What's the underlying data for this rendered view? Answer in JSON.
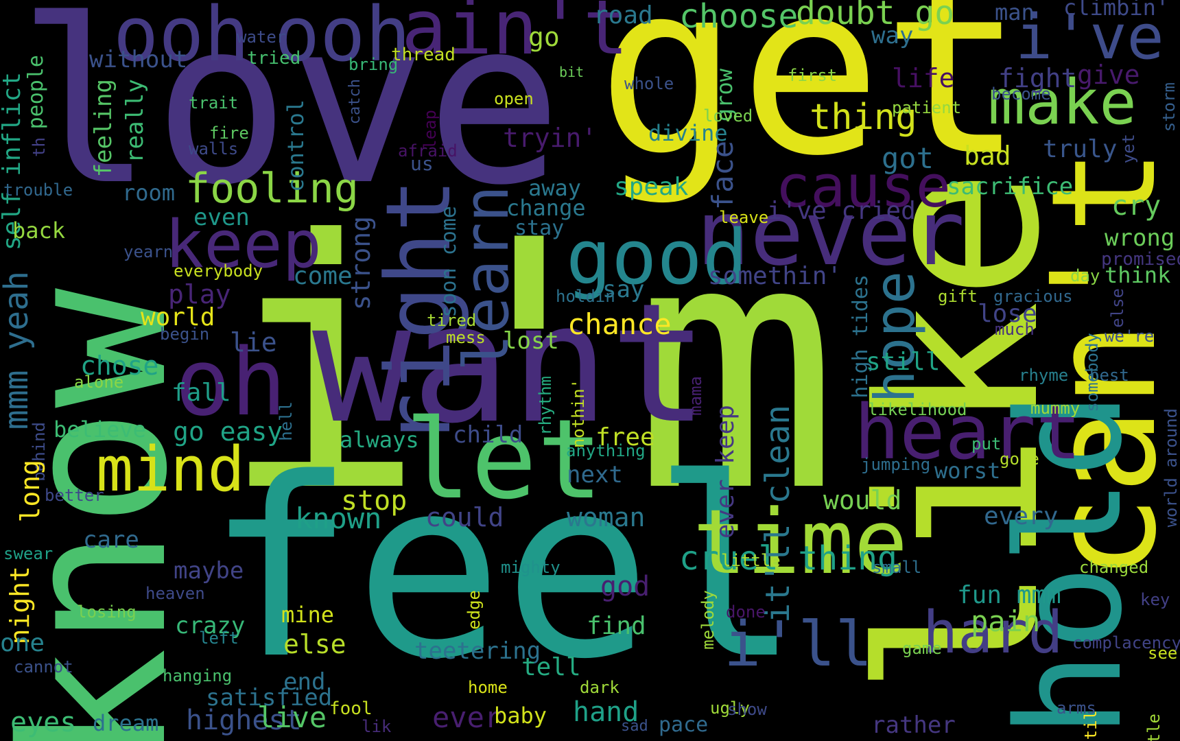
{
  "words": [
    {
      "text": "love",
      "color": "#46337e"
    },
    {
      "text": "get",
      "color": "#e2e418"
    },
    {
      "text": "i'm",
      "color": "#a0da39"
    },
    {
      "text": "feel",
      "color": "#1f9a8a"
    },
    {
      "text": "know",
      "color": "#4ac16d"
    },
    {
      "text": "want",
      "color": "#472c7a"
    },
    {
      "text": "like",
      "color": "#b5de2b"
    },
    {
      "text": "can't",
      "color": "#dde318"
    },
    {
      "text": "hold",
      "color": "#1f948c"
    },
    {
      "text": "ooh",
      "color": "#443a83"
    },
    {
      "text": "ooh",
      "color": "#433e85"
    },
    {
      "text": "ain't",
      "color": "#482576"
    },
    {
      "text": "i've",
      "color": "#3e4c8a"
    },
    {
      "text": "never",
      "color": "#472d7b"
    },
    {
      "text": "time",
      "color": "#a2da37"
    },
    {
      "text": "heart",
      "color": "#481f70"
    },
    {
      "text": "right",
      "color": "#3f4889"
    },
    {
      "text": "let",
      "color": "#4ec36b"
    },
    {
      "text": "oh",
      "color": "#482173"
    },
    {
      "text": "make",
      "color": "#7ad151"
    },
    {
      "text": "good",
      "color": "#24868e"
    },
    {
      "text": "keep",
      "color": "#482878"
    },
    {
      "text": "mind",
      "color": "#d8e219"
    },
    {
      "text": "cause",
      "color": "#440f5d"
    },
    {
      "text": "hard",
      "color": "#433e85"
    },
    {
      "text": "i'll",
      "color": "#3b528b"
    },
    {
      "text": "learn",
      "color": "#3b528b"
    },
    {
      "text": "fooling",
      "color": "#8bd646"
    },
    {
      "text": "hope",
      "color": "#2c728e"
    },
    {
      "text": "choose",
      "color": "#54c568"
    },
    {
      "text": "doubt go",
      "color": "#7ad151"
    },
    {
      "text": "thing",
      "color": "#d2e21b"
    },
    {
      "text": "cruel thing",
      "color": "#1fa188"
    },
    {
      "text": "it'll clean",
      "color": "#2a788e"
    },
    {
      "text": "mmm yeah",
      "color": "#2e6e8e"
    },
    {
      "text": "road",
      "color": "#2a788e"
    },
    {
      "text": "man",
      "color": "#3b528b"
    },
    {
      "text": "climbin'",
      "color": "#3e4a89"
    },
    {
      "text": "go",
      "color": "#9fda3a"
    },
    {
      "text": "way",
      "color": "#2e6f8e"
    },
    {
      "text": "water",
      "color": "#3e4c8a"
    },
    {
      "text": "tried",
      "color": "#46c06f"
    },
    {
      "text": "thread",
      "color": "#c2df23"
    },
    {
      "text": "bring",
      "color": "#38b977"
    },
    {
      "text": "without",
      "color": "#3b528b"
    },
    {
      "text": "self inflict",
      "color": "#22a785"
    },
    {
      "text": "people",
      "color": "#4ac16d"
    },
    {
      "text": "feeling",
      "color": "#56c667"
    },
    {
      "text": "really",
      "color": "#3dbc74"
    },
    {
      "text": "trait",
      "color": "#4ac16d"
    },
    {
      "text": "fire",
      "color": "#5ec962"
    },
    {
      "text": "walls",
      "color": "#3e4a89"
    },
    {
      "text": "th",
      "color": "#424086"
    },
    {
      "text": "catch",
      "color": "#3b528b"
    },
    {
      "text": "open",
      "color": "#cae11f"
    },
    {
      "text": "bit",
      "color": "#6ccd5a"
    },
    {
      "text": "whole",
      "color": "#3b528b"
    },
    {
      "text": "first",
      "color": "#8bd646"
    },
    {
      "text": "become",
      "color": "#3b528b"
    },
    {
      "text": "patient",
      "color": "#95d840"
    },
    {
      "text": "storm",
      "color": "#355f8d"
    },
    {
      "text": "life",
      "color": "#471063"
    },
    {
      "text": "fight",
      "color": "#424086"
    },
    {
      "text": "give",
      "color": "#481a6c"
    },
    {
      "text": "control",
      "color": "#2a788e"
    },
    {
      "text": "grow",
      "color": "#4ac16d"
    },
    {
      "text": "loved",
      "color": "#7ad151"
    },
    {
      "text": "divine",
      "color": "#26828e"
    },
    {
      "text": "tryin'",
      "color": "#481b6d"
    },
    {
      "text": "leap",
      "color": "#440154"
    },
    {
      "text": "afraid",
      "color": "#471365"
    },
    {
      "text": "us",
      "color": "#3b528b"
    },
    {
      "text": "yet",
      "color": "#3e4c8a"
    },
    {
      "text": "truly",
      "color": "#39568c"
    },
    {
      "text": "bad",
      "color": "#c8e020"
    },
    {
      "text": "got",
      "color": "#2d708e"
    },
    {
      "text": "face",
      "color": "#3b528b"
    },
    {
      "text": "speak",
      "color": "#22a785"
    },
    {
      "text": "away",
      "color": "#2a788e"
    },
    {
      "text": "sacrifice",
      "color": "#3dbc74"
    },
    {
      "text": "cry",
      "color": "#65cb5e"
    },
    {
      "text": "wrong",
      "color": "#6ccd5a"
    },
    {
      "text": "promised",
      "color": "#453781"
    },
    {
      "text": "think",
      "color": "#5ec962"
    },
    {
      "text": "day",
      "color": "#8bd646"
    },
    {
      "text": "trouble",
      "color": "#31688e"
    },
    {
      "text": "room",
      "color": "#306a8e"
    },
    {
      "text": "even",
      "color": "#1f988b"
    },
    {
      "text": "back",
      "color": "#95d840"
    },
    {
      "text": "change",
      "color": "#2a788e"
    },
    {
      "text": "stay",
      "color": "#2c728e"
    },
    {
      "text": "leave",
      "color": "#d8e219"
    },
    {
      "text": "i've cried",
      "color": "#453781"
    },
    {
      "text": "yearn",
      "color": "#3b528b"
    },
    {
      "text": "everybody",
      "color": "#c8e020"
    },
    {
      "text": "strong",
      "color": "#3b528b"
    },
    {
      "text": "soon come",
      "color": "#2c728e"
    },
    {
      "text": "come",
      "color": "#2a788e"
    },
    {
      "text": "somethin'",
      "color": "#414487"
    },
    {
      "text": "say",
      "color": "#2a788e"
    },
    {
      "text": "play",
      "color": "#482576"
    },
    {
      "text": "holdin'",
      "color": "#2c728e"
    },
    {
      "text": "gift",
      "color": "#addc30"
    },
    {
      "text": "gracious",
      "color": "#31688e"
    },
    {
      "text": "else",
      "color": "#414487"
    },
    {
      "text": "world",
      "color": "#e5e419"
    },
    {
      "text": "chance",
      "color": "#fde725"
    },
    {
      "text": "lose",
      "color": "#414487"
    },
    {
      "text": "much",
      "color": "#46327e"
    },
    {
      "text": "high tides",
      "color": "#2c728e"
    },
    {
      "text": "tired",
      "color": "#a8db34"
    },
    {
      "text": "mess",
      "color": "#bddf26"
    },
    {
      "text": "lie",
      "color": "#3b528b"
    },
    {
      "text": "begin",
      "color": "#3b528b"
    },
    {
      "text": "lost",
      "color": "#86d549"
    },
    {
      "text": "still",
      "color": "#20a486"
    },
    {
      "text": "we're",
      "color": "#3b528b"
    },
    {
      "text": "fall",
      "color": "#1f9e89"
    },
    {
      "text": "chose",
      "color": "#20a386"
    },
    {
      "text": "alone",
      "color": "#8bd646"
    },
    {
      "text": "rhyme",
      "color": "#27808e"
    },
    {
      "text": "best",
      "color": "#31688e"
    },
    {
      "text": "somebody",
      "color": "#2c728e"
    },
    {
      "text": "mama",
      "color": "#482173"
    },
    {
      "text": "rhythm",
      "color": "#26ad81"
    },
    {
      "text": "nothin'",
      "color": "#c2df23"
    },
    {
      "text": "likelihood",
      "color": "#75d054"
    },
    {
      "text": "mummy",
      "color": "#a0da39"
    },
    {
      "text": "believe",
      "color": "#3dbc74"
    },
    {
      "text": "go easy",
      "color": "#20a486"
    },
    {
      "text": "child",
      "color": "#3e4c8a"
    },
    {
      "text": "behind",
      "color": "#3e4c8a"
    },
    {
      "text": "hell",
      "color": "#2d708e"
    },
    {
      "text": "always",
      "color": "#25ab82"
    },
    {
      "text": "free",
      "color": "#c0df25"
    },
    {
      "text": "ever keep",
      "color": "#453882"
    },
    {
      "text": "world around",
      "color": "#3b528b"
    },
    {
      "text": "put",
      "color": "#3dbc74"
    },
    {
      "text": "anything",
      "color": "#22a785"
    },
    {
      "text": "gone",
      "color": "#b5de2b"
    },
    {
      "text": "jumping",
      "color": "#2e6e8e"
    },
    {
      "text": "worst",
      "color": "#2e6f8e"
    },
    {
      "text": "long",
      "color": "#fde725"
    },
    {
      "text": "better",
      "color": "#3e4989"
    },
    {
      "text": "next",
      "color": "#306a8e"
    },
    {
      "text": "would",
      "color": "#77d153"
    },
    {
      "text": "stop",
      "color": "#c0df25"
    },
    {
      "text": "known",
      "color": "#1fa088"
    },
    {
      "text": "could",
      "color": "#414487"
    },
    {
      "text": "woman",
      "color": "#2a788e"
    },
    {
      "text": "every",
      "color": "#31688e"
    },
    {
      "text": "little",
      "color": "#b0dd2f"
    },
    {
      "text": "small",
      "color": "#2e6f8e"
    },
    {
      "text": "changed",
      "color": "#9bd93c"
    },
    {
      "text": "swear",
      "color": "#1fa188"
    },
    {
      "text": "maybe",
      "color": "#414487"
    },
    {
      "text": "mighty",
      "color": "#20928c"
    },
    {
      "text": "night",
      "color": "#fde725"
    },
    {
      "text": "care",
      "color": "#306a8e"
    },
    {
      "text": "heaven",
      "color": "#3e4a89"
    },
    {
      "text": "god",
      "color": "#481f70"
    },
    {
      "text": "fun mmm",
      "color": "#1f988b"
    },
    {
      "text": "key",
      "color": "#424086"
    },
    {
      "text": "losing",
      "color": "#7ad151"
    },
    {
      "text": "edge",
      "color": "#cde11d"
    },
    {
      "text": "melody",
      "color": "#9fda3a"
    },
    {
      "text": "done",
      "color": "#481668"
    },
    {
      "text": "find",
      "color": "#4ac16d"
    },
    {
      "text": "pain",
      "color": "#7ad151"
    },
    {
      "text": "crazy",
      "color": "#37b878"
    },
    {
      "text": "mine",
      "color": "#d2e21b"
    },
    {
      "text": "left",
      "color": "#25848e"
    },
    {
      "text": "else",
      "color": "#b8de29"
    },
    {
      "text": "one",
      "color": "#26828e"
    },
    {
      "text": "game",
      "color": "#7ad151"
    },
    {
      "text": "complacency",
      "color": "#414487"
    },
    {
      "text": "see",
      "color": "#c8e020"
    },
    {
      "text": "til",
      "color": "#fde725"
    },
    {
      "text": "battle",
      "color": "#a2da37"
    },
    {
      "text": "cannot",
      "color": "#3b528b"
    },
    {
      "text": "hanging",
      "color": "#4ac16d"
    },
    {
      "text": "teetering",
      "color": "#2c728e"
    },
    {
      "text": "tell",
      "color": "#25ab82"
    },
    {
      "text": "satisfied",
      "color": "#2c728e"
    },
    {
      "text": "end",
      "color": "#2c728e"
    },
    {
      "text": "home",
      "color": "#d8e219"
    },
    {
      "text": "dark",
      "color": "#a0da39"
    },
    {
      "text": "ugly",
      "color": "#a0da39"
    },
    {
      "text": "arms",
      "color": "#3b528b"
    },
    {
      "text": "eyes",
      "color": "#3dbc74"
    },
    {
      "text": "dream",
      "color": "#2c728e"
    },
    {
      "text": "highest",
      "color": "#3b528b"
    },
    {
      "text": "live",
      "color": "#55c667"
    },
    {
      "text": "fool",
      "color": "#c8e020"
    },
    {
      "text": "lik",
      "color": "#472c7a"
    },
    {
      "text": "ever",
      "color": "#481f70"
    },
    {
      "text": "baby",
      "color": "#d2e21b"
    },
    {
      "text": "hand",
      "color": "#1fa188"
    },
    {
      "text": "pace",
      "color": "#306a8e"
    },
    {
      "text": "sad",
      "color": "#3b528b"
    },
    {
      "text": "show",
      "color": "#3e4a89"
    },
    {
      "text": "rather",
      "color": "#453781"
    },
    {
      "text": "lot",
      "color": "#31688e"
    }
  ]
}
